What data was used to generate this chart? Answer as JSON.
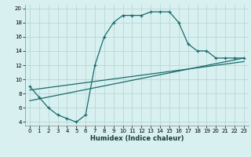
{
  "xlabel": "Humidex (Indice chaleur)",
  "ylabel": "",
  "bg_color": "#d8f0f0",
  "grid_color": "#b8d8d8",
  "line_color": "#1a6b6b",
  "curve1_x": [
    0,
    1,
    2,
    3,
    4,
    5,
    6,
    7,
    8,
    9,
    10,
    11,
    12,
    13,
    14,
    15,
    16,
    17,
    18,
    19,
    20,
    21,
    22,
    23
  ],
  "curve1_y": [
    9,
    7.5,
    6,
    5,
    4.5,
    4,
    5,
    12,
    16,
    18,
    19,
    19,
    19,
    19.5,
    19.5,
    19.5,
    18,
    15,
    14,
    14,
    13,
    13,
    13,
    13
  ],
  "curve2_x": [
    0,
    23
  ],
  "curve2_y": [
    7.0,
    13.0
  ],
  "curve3_x": [
    0,
    23
  ],
  "curve3_y": [
    8.5,
    12.5
  ],
  "xlim": [
    -0.5,
    23.5
  ],
  "ylim": [
    3.5,
    20.5
  ],
  "xticks": [
    0,
    1,
    2,
    3,
    4,
    5,
    6,
    7,
    8,
    9,
    10,
    11,
    12,
    13,
    14,
    15,
    16,
    17,
    18,
    19,
    20,
    21,
    22,
    23
  ],
  "yticks": [
    4,
    6,
    8,
    10,
    12,
    14,
    16,
    18,
    20
  ],
  "tick_fontsize": 5.0,
  "xlabel_fontsize": 6.0
}
